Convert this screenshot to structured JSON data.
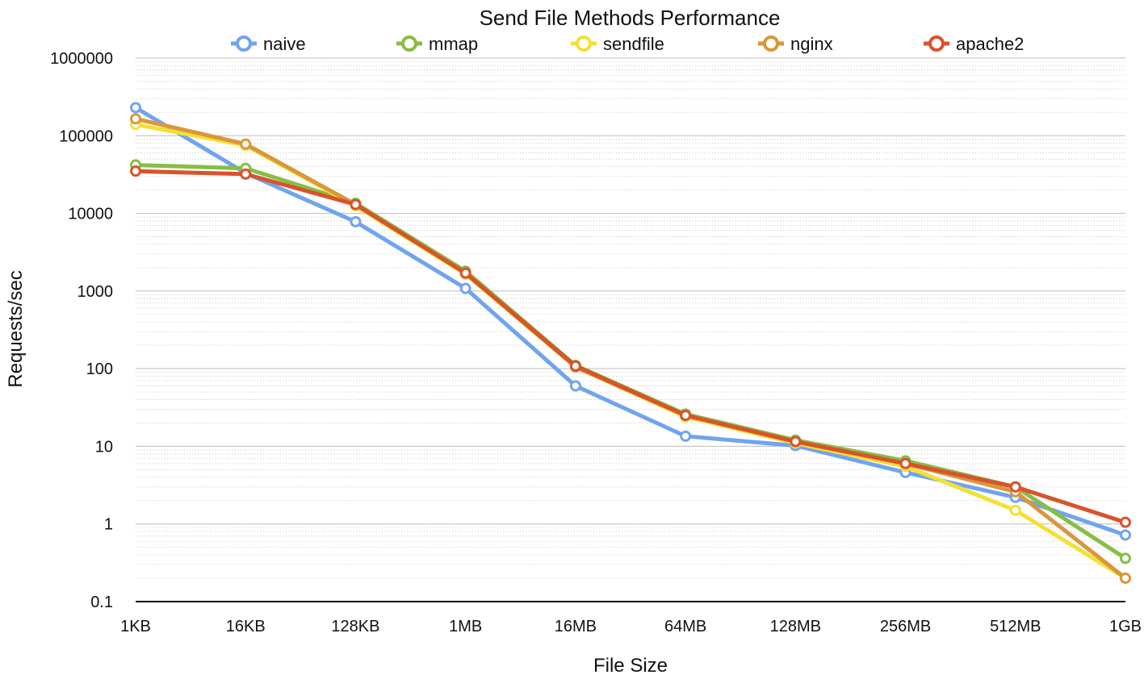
{
  "chart_data": {
    "type": "line",
    "title": "Send File Methods Performance",
    "xlabel": "File Size",
    "ylabel": "Requests/sec",
    "y_scale": "log",
    "ylim": [
      0.1,
      1000000
    ],
    "grid": "horizontal major and minor",
    "legend_position": "top",
    "x_tick_labels": [
      "1KB",
      "16KB",
      "128KB",
      "1MB",
      "16MB",
      "64MB",
      "128MB",
      "256MB",
      "512MB",
      "1GB"
    ],
    "y_tick_labels": [
      "1000000",
      "100000",
      "10000",
      "1000",
      "100",
      "10",
      "1",
      "0.1"
    ],
    "categories": [
      "1KB",
      "16KB",
      "128KB",
      "1MB",
      "16MB",
      "64MB",
      "128MB",
      "256MB",
      "512MB",
      "1GB"
    ],
    "series": [
      {
        "name": "naive",
        "color": "#6fa4f0",
        "values": [
          230000,
          33000,
          7800,
          1080,
          60,
          13.5,
          10.2,
          4.6,
          2.2,
          0.72
        ]
      },
      {
        "name": "mmap",
        "color": "#86be45",
        "values": [
          42000,
          38000,
          13500,
          1800,
          110,
          26,
          12,
          6.5,
          3.0,
          0.36
        ]
      },
      {
        "name": "sendfile",
        "color": "#f4e035",
        "values": [
          140000,
          75000,
          12500,
          1650,
          105,
          24,
          11,
          5.5,
          1.5,
          0.2
        ]
      },
      {
        "name": "nginx",
        "color": "#d9973a",
        "values": [
          165000,
          78000,
          13000,
          1700,
          105,
          25,
          11.5,
          6.0,
          2.6,
          0.2
        ]
      },
      {
        "name": "apache2",
        "color": "#d9532a",
        "values": [
          35000,
          32000,
          13000,
          1700,
          108,
          25,
          11.5,
          6.0,
          3.0,
          1.05
        ]
      }
    ]
  }
}
